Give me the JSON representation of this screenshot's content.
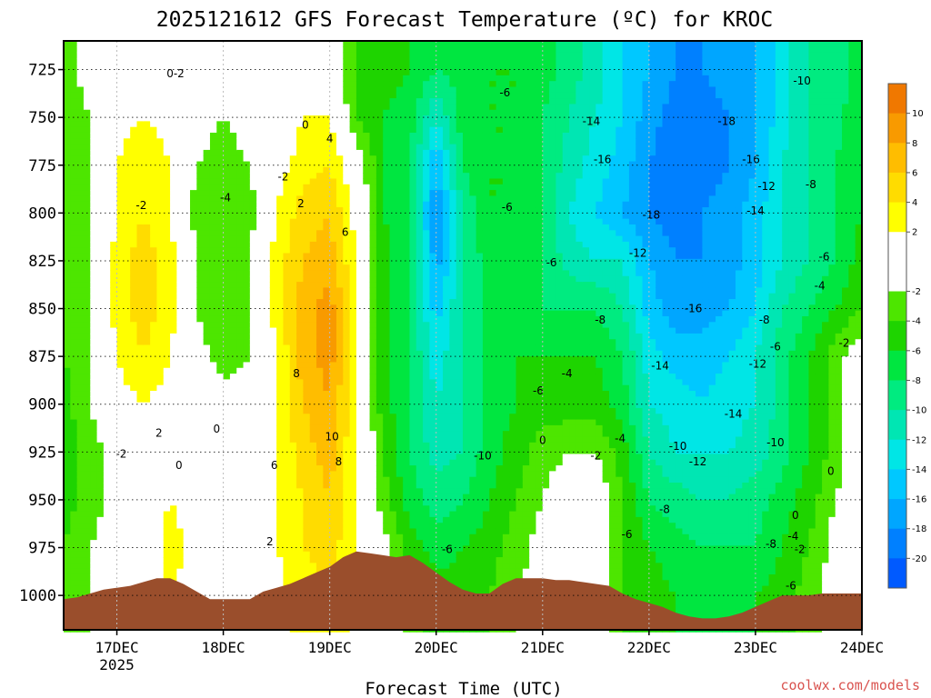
{
  "chart_data": {
    "type": "heatmap",
    "title": "2025121612 GFS Forecast Temperature (ºC) for KROC",
    "xlabel": "Forecast Time (UTC)",
    "ylabel": "",
    "credit": "coolwx.com/models",
    "y_ticks": [
      "725",
      "750",
      "775",
      "800",
      "825",
      "850",
      "875",
      "900",
      "925",
      "950",
      "975",
      "1000"
    ],
    "y_values": [
      725,
      750,
      775,
      800,
      825,
      850,
      875,
      900,
      925,
      950,
      975,
      1000
    ],
    "ylim": [
      1018,
      710
    ],
    "x_ticks": [
      {
        "label": "17DEC",
        "sub": "2025",
        "hours": 24
      },
      {
        "label": "18DEC",
        "sub": "",
        "hours": 48
      },
      {
        "label": "19DEC",
        "sub": "",
        "hours": 72
      },
      {
        "label": "20DEC",
        "sub": "",
        "hours": 96
      },
      {
        "label": "21DEC",
        "sub": "",
        "hours": 120
      },
      {
        "label": "22DEC",
        "sub": "",
        "hours": 144
      },
      {
        "label": "23DEC",
        "sub": "",
        "hours": 168
      },
      {
        "label": "24DEC",
        "sub": "",
        "hours": 192
      }
    ],
    "xlim_hours": [
      12,
      192
    ],
    "colorbar": {
      "labels": [
        "10",
        "8",
        "6",
        "4",
        "2",
        "-2",
        "-4",
        "-6",
        "-8",
        "-10",
        "-12",
        "-14",
        "-16",
        "-18",
        "-20"
      ],
      "levels_desc": [
        12,
        10,
        8,
        6,
        4,
        2,
        0,
        -2,
        -4,
        -6,
        -8,
        -10,
        -12,
        -14,
        -16,
        -18,
        -20,
        -22
      ],
      "colors": [
        "#f07800",
        "#f89a00",
        "#ffbd00",
        "#ffdc00",
        "#ffff00",
        "#ffffff",
        "#ffffff",
        "#4de600",
        "#1ed400",
        "#00e640",
        "#00eb80",
        "#00e6b3",
        "#00e6e6",
        "#00c8ff",
        "#00a6ff",
        "#0080ff",
        "#005aff"
      ]
    },
    "surface_pressure_hPa": {
      "hours": [
        12,
        15,
        18,
        21,
        24,
        27,
        30,
        33,
        36,
        39,
        42,
        45,
        48,
        51,
        54,
        57,
        60,
        63,
        66,
        69,
        72,
        75,
        78,
        81,
        84,
        87,
        90,
        93,
        96,
        99,
        102,
        105,
        108,
        111,
        114,
        117,
        120,
        123,
        126,
        129,
        132,
        135,
        138,
        141,
        144,
        147,
        150,
        153,
        156,
        159,
        162,
        165,
        168,
        171,
        174,
        177,
        180,
        183,
        186,
        189,
        192
      ],
      "values": [
        1002,
        1001,
        999,
        997,
        996,
        995,
        993,
        991,
        991,
        994,
        998,
        1002,
        1002,
        1002,
        1002,
        998,
        996,
        994,
        991,
        988,
        985,
        980,
        977,
        978,
        979,
        980,
        979,
        983,
        988,
        993,
        997,
        999,
        999,
        994,
        991,
        991,
        991,
        992,
        992,
        993,
        994,
        995,
        999,
        1002,
        1004,
        1006,
        1009,
        1011,
        1012,
        1012,
        1011,
        1009,
        1006,
        1003,
        1000,
        1000,
        1000,
        999,
        999,
        999,
        999
      ]
    },
    "temperature_field": {
      "description": "Sampled temperature (degC) at selected hours and pressure levels (approximate readings of the contoured field).",
      "hours": [
        12,
        18,
        24,
        30,
        36,
        42,
        48,
        54,
        60,
        66,
        72,
        78,
        84,
        90,
        96,
        102,
        108,
        114,
        120,
        126,
        132,
        138,
        144,
        150,
        156,
        162,
        168,
        174,
        180,
        186,
        192
      ],
      "levels_hPa": [
        725,
        750,
        775,
        800,
        825,
        850,
        875,
        900,
        925,
        950,
        975,
        1000
      ],
      "values": [
        [
          -3,
          -1,
          0,
          1,
          0,
          -1,
          -2,
          -1,
          0,
          1,
          0,
          -4,
          -5,
          -6,
          -8,
          -7,
          -6,
          -6,
          -7,
          -9,
          -11,
          -14,
          -16,
          -18,
          -18,
          -17,
          -16,
          -13,
          -10,
          -9,
          -7
        ],
        [
          -3,
          -2,
          1,
          2,
          1,
          -1,
          -2,
          -1,
          0,
          2,
          2,
          -4,
          -6,
          -7,
          -12,
          -7,
          -6,
          -6,
          -8,
          -10,
          -12,
          -14,
          -17,
          -19,
          -19,
          -18,
          -16,
          -13,
          -10,
          -9,
          -6
        ],
        [
          -3,
          -2,
          2,
          4,
          2,
          -2,
          -3,
          -2,
          1,
          3,
          4,
          0,
          -6,
          -8,
          -16,
          -8,
          -6,
          -6,
          -8,
          -11,
          -13,
          -15,
          -18,
          -20,
          -19,
          -18,
          -16,
          -12,
          -10,
          -8,
          -6
        ],
        [
          -3,
          -2,
          2,
          4,
          2,
          -3,
          -4,
          -3,
          2,
          5,
          6,
          1,
          -6,
          -8,
          -18,
          -10,
          -6,
          -6,
          -8,
          -12,
          -14,
          -16,
          -18,
          -19,
          -18,
          -17,
          -15,
          -12,
          -10,
          -8,
          -6
        ],
        [
          -3,
          -2,
          3,
          5,
          3,
          -2,
          -4,
          -2,
          3,
          6,
          7,
          2,
          -5,
          -8,
          -17,
          -10,
          -7,
          -6,
          -8,
          -11,
          -12,
          -12,
          -16,
          -18,
          -18,
          -17,
          -15,
          -12,
          -10,
          -8,
          -5
        ],
        [
          -4,
          -2,
          3,
          5,
          3,
          -2,
          -4,
          -2,
          3,
          7,
          9,
          3,
          -5,
          -8,
          -15,
          -10,
          -7,
          -6,
          -8,
          -8,
          -8,
          -10,
          -15,
          -17,
          -17,
          -16,
          -14,
          -10,
          -8,
          -6,
          -4
        ],
        [
          -4,
          -2,
          2,
          4,
          2,
          -1,
          -3,
          -2,
          2,
          7,
          9,
          2,
          -5,
          -8,
          -13,
          -10,
          -7,
          -6,
          -6,
          -6,
          -6,
          -8,
          -13,
          -15,
          -15,
          -14,
          -12,
          -9,
          -6,
          -3,
          0
        ],
        [
          -5,
          -2,
          1,
          2,
          1,
          0,
          -1,
          -1,
          2,
          6,
          8,
          2,
          -5,
          -8,
          -12,
          -10,
          -7,
          -6,
          -5,
          -5,
          -5,
          -7,
          -12,
          -13,
          -14,
          -13,
          -12,
          -9,
          -6,
          -3,
          0
        ],
        [
          -5,
          -3,
          -1,
          0,
          0,
          0,
          -1,
          -1,
          2,
          5,
          7,
          2,
          -4,
          -8,
          -11,
          -10,
          -7,
          -5,
          -3,
          -2,
          -2,
          -5,
          -10,
          -12,
          -12,
          -12,
          -11,
          -9,
          -6,
          -3,
          0
        ],
        [
          -5,
          -3,
          -1,
          0,
          2,
          1,
          -1,
          -1,
          2,
          4,
          6,
          2,
          -3,
          -7,
          -9,
          -8,
          -6,
          -4,
          -2,
          0,
          0,
          -4,
          -8,
          -9,
          -10,
          -10,
          -9,
          -7,
          -5,
          -2,
          0
        ],
        [
          -4,
          -2,
          -1,
          0,
          3,
          1,
          0,
          0,
          2,
          4,
          5,
          2,
          -1,
          -5,
          -7,
          -6,
          -5,
          -3,
          -1,
          1,
          1,
          -4,
          -6,
          -7,
          -8,
          -8,
          -8,
          -6,
          -4,
          -1,
          0
        ],
        [
          -4,
          -2,
          -1,
          0,
          2,
          1,
          0,
          0,
          1,
          3,
          4,
          1,
          0,
          -3,
          -5,
          -5,
          -4,
          -2,
          -1,
          1,
          1,
          -4,
          -5,
          -6,
          -6,
          -6,
          -6,
          -5,
          -3,
          -1,
          0
        ]
      ]
    },
    "contour_labels": [
      {
        "text": "0",
        "h": 36.0,
        "p": 727
      },
      {
        "text": "-2",
        "h": 38.0,
        "p": 727
      },
      {
        "text": "-2",
        "h": 29.5,
        "p": 796
      },
      {
        "text": "-2",
        "h": 61.5,
        "p": 781
      },
      {
        "text": "-4",
        "h": 48.5,
        "p": 792
      },
      {
        "text": "0",
        "h": 66.5,
        "p": 754
      },
      {
        "text": "4",
        "h": 72.0,
        "p": 761
      },
      {
        "text": "2",
        "h": 65.5,
        "p": 795
      },
      {
        "text": "6",
        "h": 75.5,
        "p": 810
      },
      {
        "text": "8",
        "h": 64.5,
        "p": 884
      },
      {
        "text": "10",
        "h": 72.5,
        "p": 917
      },
      {
        "text": "8",
        "h": 74.0,
        "p": 930
      },
      {
        "text": "6",
        "h": 59.5,
        "p": 932
      },
      {
        "text": "2",
        "h": 58.5,
        "p": 972
      },
      {
        "text": "2",
        "h": 33.5,
        "p": 915
      },
      {
        "text": "0",
        "h": 46.5,
        "p": 913
      },
      {
        "text": "0",
        "h": 38.0,
        "p": 932
      },
      {
        "text": "-2",
        "h": 25.0,
        "p": 926
      },
      {
        "text": "-6",
        "h": 111.5,
        "p": 737
      },
      {
        "text": "-6",
        "h": 112.0,
        "p": 797
      },
      {
        "text": "-6",
        "h": 122.0,
        "p": 826
      },
      {
        "text": "-14",
        "h": 131.0,
        "p": 752
      },
      {
        "text": "-16",
        "h": 133.5,
        "p": 772
      },
      {
        "text": "-18",
        "h": 144.5,
        "p": 801
      },
      {
        "text": "-18",
        "h": 161.5,
        "p": 752
      },
      {
        "text": "-16",
        "h": 167.0,
        "p": 772
      },
      {
        "text": "-12",
        "h": 170.5,
        "p": 786
      },
      {
        "text": "-14",
        "h": 168.0,
        "p": 799
      },
      {
        "text": "-10",
        "h": 178.5,
        "p": 731
      },
      {
        "text": "-8",
        "h": 180.5,
        "p": 785
      },
      {
        "text": "-6",
        "h": 183.5,
        "p": 823
      },
      {
        "text": "-4",
        "h": 182.5,
        "p": 838
      },
      {
        "text": "-12",
        "h": 141.5,
        "p": 821
      },
      {
        "text": "-8",
        "h": 133.0,
        "p": 856
      },
      {
        "text": "-16",
        "h": 154.0,
        "p": 850
      },
      {
        "text": "-14",
        "h": 146.5,
        "p": 880
      },
      {
        "text": "-8",
        "h": 170.0,
        "p": 856
      },
      {
        "text": "-6",
        "h": 172.5,
        "p": 870
      },
      {
        "text": "-12",
        "h": 168.5,
        "p": 879
      },
      {
        "text": "-14",
        "h": 163.0,
        "p": 905
      },
      {
        "text": "-4",
        "h": 125.5,
        "p": 884
      },
      {
        "text": "-6",
        "h": 119.0,
        "p": 893
      },
      {
        "text": "-2",
        "h": 188.0,
        "p": 868
      },
      {
        "text": "-10",
        "h": 106.5,
        "p": 927
      },
      {
        "text": "0",
        "h": 120.0,
        "p": 919
      },
      {
        "text": "-2",
        "h": 132.0,
        "p": 927
      },
      {
        "text": "-4",
        "h": 137.5,
        "p": 918
      },
      {
        "text": "-10",
        "h": 150.5,
        "p": 922
      },
      {
        "text": "-12",
        "h": 155.0,
        "p": 930
      },
      {
        "text": "-10",
        "h": 172.5,
        "p": 920
      },
      {
        "text": "-8",
        "h": 147.5,
        "p": 955
      },
      {
        "text": "-6",
        "h": 139.0,
        "p": 968
      },
      {
        "text": "-8",
        "h": 171.5,
        "p": 973
      },
      {
        "text": "-4",
        "h": 176.5,
        "p": 969
      },
      {
        "text": "-2",
        "h": 178.0,
        "p": 976
      },
      {
        "text": "0",
        "h": 177.0,
        "p": 958
      },
      {
        "text": "0",
        "h": 185.0,
        "p": 935
      },
      {
        "text": "-6",
        "h": 98.5,
        "p": 976
      },
      {
        "text": "-6",
        "h": 176.0,
        "p": 995
      }
    ]
  }
}
